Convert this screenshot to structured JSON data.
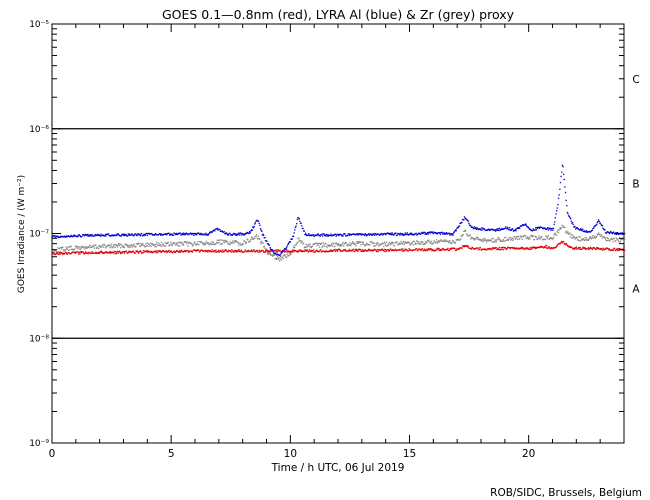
{
  "chart_data": {
    "type": "scatter",
    "title": "GOES 0.1—0.8nm (red), LYRA Al (blue) & Zr (grey) proxy",
    "xlabel": "Time / h UTC, 06 Jul 2019",
    "ylabel": "GOES Irradiance / (W m⁻²)",
    "credit": "ROB/SIDC, Brussels, Belgium",
    "xlim": [
      0,
      24
    ],
    "ylim": [
      1e-09,
      1e-05
    ],
    "yscale": "log",
    "x_ticks": [
      0,
      5,
      10,
      15,
      20
    ],
    "x_tick_labels": [
      "0",
      "5",
      "10",
      "15",
      "20"
    ],
    "y_ticks": [
      1e-09,
      1e-08,
      1e-07,
      1e-06,
      1e-05
    ],
    "y_tick_labels": [
      "10⁻⁹",
      "10⁻⁸",
      "10⁻⁷",
      "10⁻⁶",
      "10⁻⁵"
    ],
    "flare_class_lines": [
      1e-08,
      1e-06
    ],
    "flare_classes": [
      {
        "label": "C",
        "y": 3e-06
      },
      {
        "label": "B",
        "y": 3e-07
      },
      {
        "label": "A",
        "y": 3e-08
      }
    ],
    "series": [
      {
        "color": "#0000cc",
        "x": [
          0,
          1,
          2,
          3,
          4,
          5,
          6,
          6.5,
          6.9,
          7.3,
          8,
          8.3,
          8.6,
          8.8,
          9.2,
          9.5,
          9.8,
          10.1,
          10.3,
          10.6,
          11,
          12,
          13,
          14,
          15,
          16,
          16.8,
          17.3,
          17.6,
          18,
          18.5,
          19,
          19.4,
          19.8,
          20.1,
          20.5,
          21,
          21.2,
          21.4,
          21.6,
          21.9,
          22.3,
          22.6,
          22.9,
          23.2,
          23.6,
          24
        ],
        "y": [
          9.5e-08,
          9.6e-08,
          9.8e-08,
          9.8e-08,
          9.9e-08,
          1e-07,
          1e-07,
          1e-07,
          1.12e-07,
          1e-07,
          1e-07,
          1.03e-07,
          1.4e-07,
          1e-07,
          7e-08,
          6.2e-08,
          7.5e-08,
          9.5e-08,
          1.45e-07,
          1e-07,
          9.8e-08,
          9.8e-08,
          9.9e-08,
          1e-07,
          1e-07,
          1.03e-07,
          1e-07,
          1.45e-07,
          1.15e-07,
          1.12e-07,
          1.08e-07,
          1.15e-07,
          1.08e-07,
          1.25e-07,
          1.1e-07,
          1.15e-07,
          1.1e-07,
          1.9e-07,
          4.7e-07,
          1.6e-07,
          1.15e-07,
          1.08e-07,
          1.05e-07,
          1.35e-07,
          1.05e-07,
          1.02e-07,
          1.02e-07
        ]
      },
      {
        "color": "#888888",
        "x": [
          0,
          1,
          2,
          3,
          4,
          5,
          6,
          7,
          8,
          8.6,
          9,
          9.5,
          10,
          10.3,
          10.6,
          11,
          12,
          13,
          14,
          15,
          16,
          17,
          17.3,
          17.6,
          18,
          18.5,
          19,
          19.8,
          20.5,
          21,
          21.4,
          21.6,
          22,
          22.5,
          22.9,
          23.3,
          24
        ],
        "y": [
          7e-08,
          7.4e-08,
          7.6e-08,
          7.8e-08,
          7.9e-08,
          8e-08,
          8.1e-08,
          8.4e-08,
          8.2e-08,
          9.5e-08,
          6.8e-08,
          5.8e-08,
          6.4e-08,
          9e-08,
          7.6e-08,
          7.8e-08,
          8e-08,
          8.1e-08,
          8e-08,
          8.2e-08,
          8.4e-08,
          8.5e-08,
          1.05e-07,
          9e-08,
          8.8e-08,
          8.7e-08,
          9e-08,
          9.3e-08,
          9.2e-08,
          9.3e-08,
          1.2e-07,
          1e-07,
          9.1e-08,
          8.9e-08,
          1e-07,
          8.9e-08,
          8.8e-08
        ]
      },
      {
        "color": "#dd0000",
        "x": [
          0,
          1,
          2,
          3,
          4,
          5,
          6,
          7,
          8,
          9,
          10,
          11,
          12,
          13,
          14,
          15,
          16,
          17,
          17.3,
          17.6,
          18,
          19,
          20,
          20.7,
          21,
          21.4,
          21.7,
          22,
          22.5,
          23,
          24
        ],
        "y": [
          6.5e-08,
          6.6e-08,
          6.7e-08,
          6.7e-08,
          6.8e-08,
          6.8e-08,
          6.9e-08,
          6.9e-08,
          6.9e-08,
          6.9e-08,
          6.9e-08,
          6.9e-08,
          7e-08,
          7e-08,
          7e-08,
          7.1e-08,
          7.1e-08,
          7.2e-08,
          7.8e-08,
          7.3e-08,
          7.2e-08,
          7.3e-08,
          7.3e-08,
          7.6e-08,
          7.3e-08,
          8.5e-08,
          7.5e-08,
          7.3e-08,
          7.3e-08,
          7.2e-08,
          7.1e-08
        ]
      }
    ]
  }
}
